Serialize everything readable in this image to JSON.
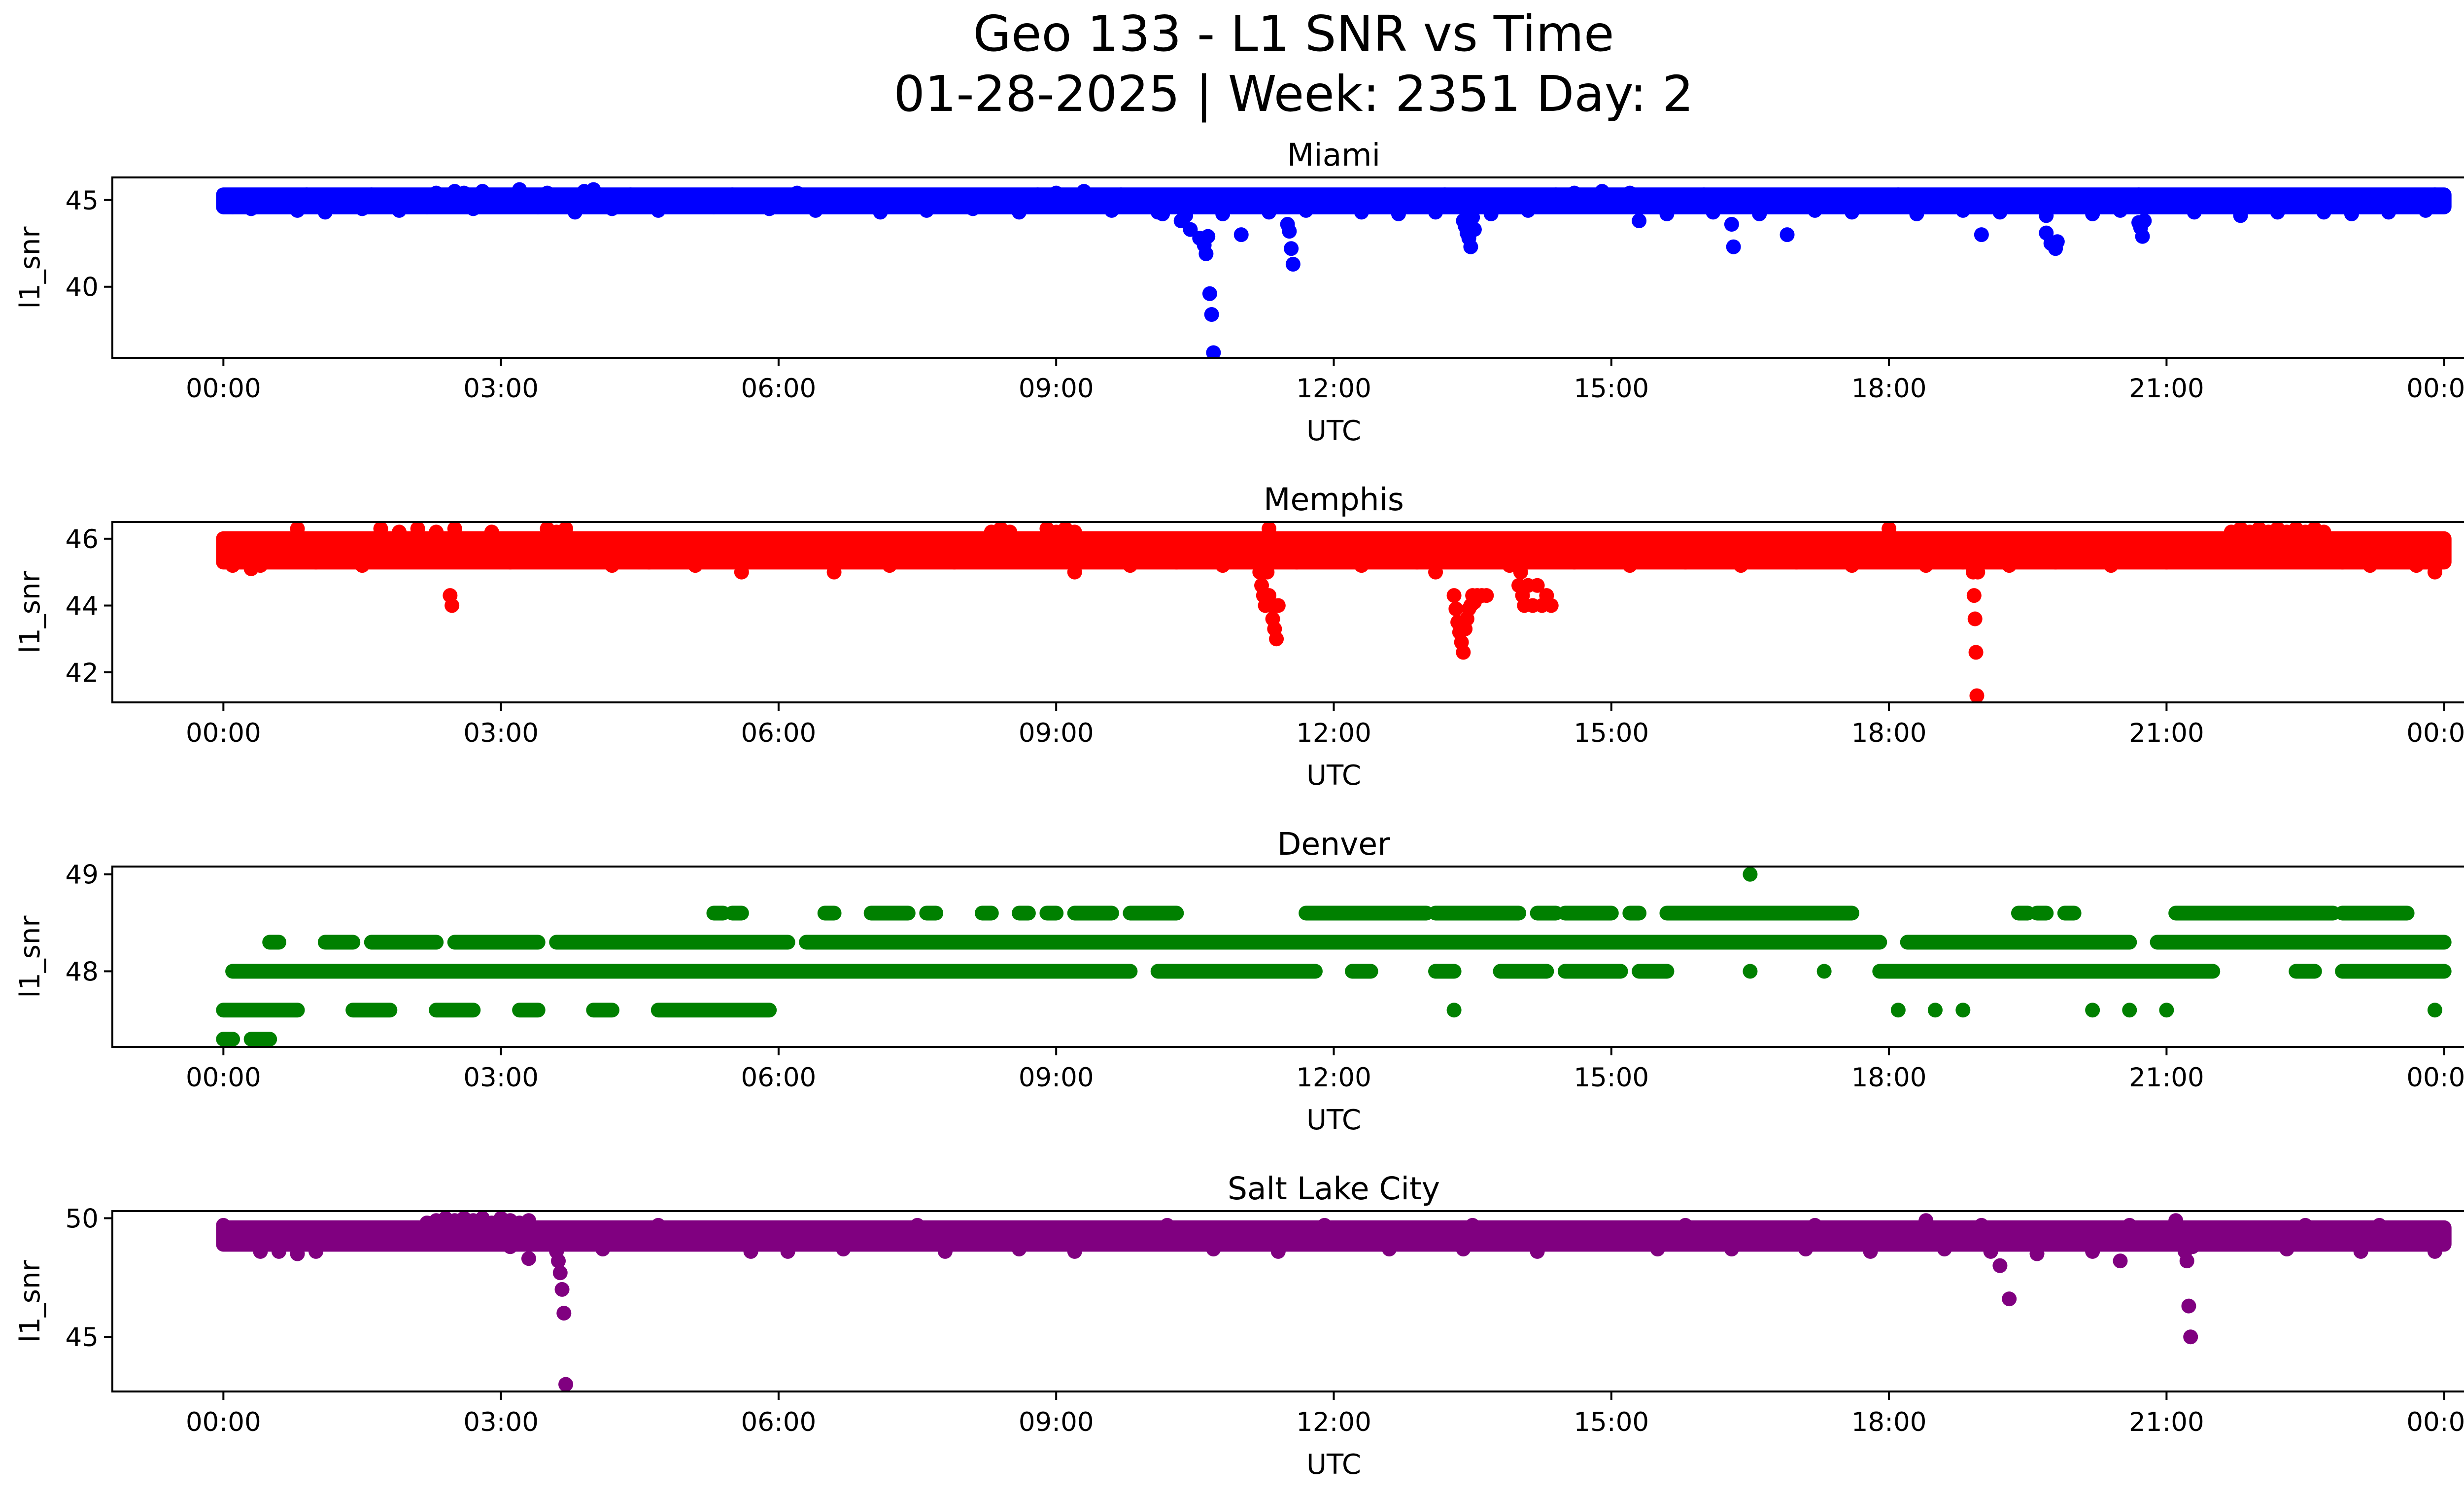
{
  "figure": {
    "title_line1": "Geo 133 - L1 SNR vs Time",
    "title_line2": "01-28-2025 | Week: 2351 Day: 2"
  },
  "chart_data": [
    {
      "type": "scatter",
      "title": "Miami",
      "xlabel": "UTC",
      "ylabel": "l1_snr",
      "color": "#0000ff",
      "xlim_hours": [
        -1.2,
        25.2
      ],
      "ylim": [
        35.9,
        46.3
      ],
      "x_ticks": [
        "00:00",
        "03:00",
        "06:00",
        "09:00",
        "12:00",
        "15:00",
        "18:00",
        "21:00",
        "00:00"
      ],
      "y_ticks": [
        40,
        45
      ],
      "band": {
        "low": 44.6,
        "high": 45.3,
        "start": 0.0,
        "end": 24.0
      },
      "scatter_above": {
        "x": [
          0.3,
          0.5,
          0.9,
          1.2,
          1.6,
          2.3,
          2.5,
          2.6,
          2.8,
          3.2,
          3.5,
          3.9,
          4.0,
          4.4,
          5.1,
          5.5,
          6.2,
          7.0,
          8.3,
          8.8,
          9.0,
          9.3,
          9.7,
          11.8,
          13.2,
          14.4,
          14.6,
          14.9,
          15.2,
          16.0,
          16.4,
          17.9,
          18.1,
          19.4,
          20.7,
          21.1,
          22.4,
          23.6,
          23.9
        ],
        "y": [
          45.2,
          45.2,
          45.3,
          45.2,
          45.3,
          45.4,
          45.5,
          45.4,
          45.5,
          45.6,
          45.4,
          45.5,
          45.6,
          45.3,
          45.2,
          45.3,
          45.4,
          45.2,
          45.2,
          45.3,
          45.4,
          45.5,
          45.3,
          45.2,
          45.3,
          45.3,
          45.4,
          45.5,
          45.4,
          45.3,
          45.2,
          45.2,
          45.3,
          45.2,
          45.3,
          45.2,
          45.2,
          45.2,
          45.3
        ]
      },
      "scatter_below": {
        "x": [
          0.1,
          0.3,
          0.8,
          1.1,
          1.5,
          1.9,
          2.2,
          2.7,
          3.4,
          3.8,
          4.2,
          4.7,
          5.3,
          5.9,
          6.4,
          7.1,
          7.6,
          8.1,
          8.6,
          9.6,
          10.1,
          10.4,
          10.8,
          11.3,
          11.7,
          12.3,
          12.7,
          13.1,
          13.7,
          14.1,
          15.6,
          16.1,
          16.6,
          17.2,
          17.6,
          18.3,
          18.8,
          19.2,
          19.7,
          20.2,
          20.5,
          21.3,
          21.8,
          22.2,
          22.7,
          23.0,
          23.4,
          23.8
        ],
        "y": [
          44.6,
          44.5,
          44.4,
          44.3,
          44.5,
          44.4,
          44.6,
          44.5,
          44.6,
          44.3,
          44.5,
          44.4,
          44.6,
          44.5,
          44.4,
          44.3,
          44.4,
          44.5,
          44.3,
          44.4,
          44.3,
          44.1,
          44.2,
          44.3,
          44.4,
          44.3,
          44.2,
          44.3,
          44.2,
          44.4,
          44.2,
          44.3,
          44.2,
          44.4,
          44.3,
          44.2,
          44.4,
          44.3,
          44.1,
          44.2,
          44.4,
          44.3,
          44.1,
          44.3,
          44.3,
          44.2,
          44.3,
          44.4
        ]
      },
      "scatter_dips": {
        "x": [
          10.15,
          10.35,
          10.45,
          10.55,
          10.6,
          10.62,
          10.64,
          10.66,
          10.68,
          10.7,
          11.0,
          11.5,
          11.52,
          11.54,
          11.56,
          13.4,
          13.42,
          13.44,
          13.46,
          13.48,
          13.5,
          13.52,
          15.3,
          16.3,
          16.32,
          16.9,
          19.0,
          19.7,
          19.75,
          19.8,
          19.82,
          20.7,
          20.72,
          20.74,
          20.76
        ],
        "y": [
          44.2,
          43.8,
          43.3,
          42.8,
          42.4,
          41.9,
          42.9,
          39.6,
          38.4,
          36.2,
          43.0,
          43.6,
          43.2,
          42.2,
          41.3,
          43.8,
          43.5,
          43.1,
          42.8,
          42.3,
          44.0,
          43.3,
          43.8,
          43.6,
          42.3,
          43.0,
          43.0,
          43.1,
          42.5,
          42.2,
          42.6,
          43.7,
          43.4,
          42.9,
          43.8
        ]
      }
    },
    {
      "type": "scatter",
      "title": "Memphis",
      "xlabel": "UTC",
      "ylabel": "l1_snr",
      "color": "#ff0000",
      "xlim_hours": [
        -1.2,
        25.2
      ],
      "ylim": [
        41.1,
        46.5
      ],
      "x_ticks": [
        "00:00",
        "03:00",
        "06:00",
        "09:00",
        "12:00",
        "15:00",
        "18:00",
        "21:00",
        "00:00"
      ],
      "y_ticks": [
        42,
        44,
        46
      ],
      "band": {
        "low": 45.3,
        "high": 46.0,
        "start": 0.0,
        "end": 24.0
      },
      "scatter_above": {
        "x": [
          0.8,
          1.7,
          1.9,
          2.1,
          2.3,
          2.5,
          2.9,
          3.5,
          3.6,
          3.7,
          8.3,
          8.4,
          8.5,
          8.9,
          9.0,
          9.1,
          9.2,
          11.3,
          18.0,
          21.7,
          21.8,
          21.9,
          22.0,
          22.1,
          22.2,
          22.3,
          22.4,
          22.5,
          22.6,
          22.7
        ],
        "y": [
          46.3,
          46.3,
          46.2,
          46.3,
          46.2,
          46.3,
          46.2,
          46.3,
          46.2,
          46.3,
          46.2,
          46.3,
          46.2,
          46.3,
          46.2,
          46.3,
          46.2,
          46.3,
          46.3,
          46.2,
          46.3,
          46.2,
          46.3,
          46.2,
          46.3,
          46.2,
          46.3,
          46.2,
          46.3,
          46.2
        ]
      },
      "scatter_below": {
        "x": [
          0.1,
          0.3,
          0.4,
          1.0,
          1.5,
          3.1,
          4.2,
          4.6,
          5.1,
          5.6,
          6.6,
          7.2,
          7.9,
          9.2,
          9.8,
          10.3,
          10.8,
          11.6,
          12.3,
          12.9,
          13.1,
          13.9,
          14.6,
          15.2,
          15.8,
          16.4,
          17.0,
          17.6,
          18.4,
          18.8,
          19.3,
          19.8,
          20.4,
          21.0,
          22.9,
          23.2,
          23.7,
          23.9
        ],
        "y": [
          45.2,
          45.1,
          45.2,
          45.3,
          45.2,
          45.3,
          45.2,
          45.3,
          45.2,
          45.0,
          45.0,
          45.2,
          45.3,
          45.0,
          45.2,
          45.3,
          45.2,
          45.3,
          45.2,
          45.3,
          45.0,
          45.2,
          45.3,
          45.2,
          45.3,
          45.2,
          45.3,
          45.2,
          45.2,
          45.3,
          45.2,
          45.3,
          45.2,
          45.3,
          45.3,
          45.2,
          45.2,
          45.0
        ]
      },
      "scatter_dips": {
        "x": [
          2.45,
          2.47,
          11.2,
          11.22,
          11.24,
          11.26,
          11.28,
          11.3,
          11.32,
          11.34,
          11.36,
          11.38,
          11.4,
          13.3,
          13.32,
          13.34,
          13.36,
          13.38,
          13.4,
          13.42,
          13.44,
          13.46,
          13.48,
          13.5,
          13.52,
          13.55,
          13.6,
          13.65,
          14.0,
          14.02,
          14.04,
          14.06,
          14.1,
          14.15,
          14.2,
          14.25,
          14.3,
          14.35,
          18.9,
          18.91,
          18.92,
          18.93,
          18.94,
          18.95,
          18.96
        ],
        "y": [
          44.3,
          44.0,
          45.0,
          44.6,
          44.3,
          44.0,
          45.0,
          44.3,
          44.0,
          43.6,
          43.3,
          43.0,
          44.0,
          44.3,
          43.9,
          43.5,
          43.2,
          42.9,
          42.6,
          43.3,
          43.6,
          43.9,
          44.0,
          44.3,
          44.1,
          44.3,
          44.3,
          44.3,
          44.6,
          45.0,
          44.3,
          44.0,
          44.6,
          44.0,
          44.6,
          44.0,
          44.3,
          44.0,
          45.3,
          45.0,
          44.3,
          43.6,
          42.6,
          41.3,
          45.0
        ]
      }
    },
    {
      "type": "scatter",
      "title": "Denver",
      "xlabel": "UTC",
      "ylabel": "l1_snr",
      "color": "#008000",
      "xlim_hours": [
        -1.2,
        25.2
      ],
      "ylim": [
        47.22,
        49.08
      ],
      "x_ticks": [
        "00:00",
        "03:00",
        "06:00",
        "09:00",
        "12:00",
        "15:00",
        "18:00",
        "21:00",
        "00:00"
      ],
      "y_ticks": [
        48,
        49
      ],
      "levels": [
        {
          "y": 47.3,
          "segments": [
            [
              0.0,
              0.1
            ],
            [
              0.3,
              0.5
            ]
          ]
        },
        {
          "y": 47.6,
          "segments": [
            [
              0.0,
              0.8
            ],
            [
              1.4,
              1.8
            ],
            [
              2.3,
              2.7
            ],
            [
              3.2,
              3.4
            ],
            [
              4.0,
              4.2
            ],
            [
              4.7,
              5.9
            ]
          ]
        },
        {
          "y": 48.0,
          "segments": [
            [
              0.1,
              9.8
            ],
            [
              10.1,
              11.8
            ],
            [
              12.2,
              12.4
            ],
            [
              13.1,
              13.3
            ],
            [
              13.8,
              14.3
            ],
            [
              14.5,
              15.1
            ],
            [
              15.3,
              15.6
            ],
            [
              17.9,
              21.5
            ],
            [
              22.4,
              22.6
            ],
            [
              22.9,
              24.0
            ]
          ]
        },
        {
          "y": 48.3,
          "segments": [
            [
              0.5,
              0.6
            ],
            [
              1.1,
              1.4
            ],
            [
              1.6,
              2.3
            ],
            [
              2.5,
              3.4
            ],
            [
              3.6,
              6.1
            ],
            [
              6.3,
              17.9
            ],
            [
              18.2,
              20.6
            ],
            [
              20.9,
              24.0
            ]
          ]
        },
        {
          "y": 48.6,
          "segments": [
            [
              5.3,
              5.4
            ],
            [
              5.5,
              5.6
            ],
            [
              6.5,
              6.6
            ],
            [
              7.0,
              7.4
            ],
            [
              7.6,
              7.7
            ],
            [
              8.2,
              8.3
            ],
            [
              8.6,
              8.7
            ],
            [
              8.9,
              9.0
            ],
            [
              9.2,
              9.6
            ],
            [
              9.8,
              10.3
            ],
            [
              11.7,
              13.0
            ],
            [
              13.1,
              14.0
            ],
            [
              14.2,
              14.4
            ],
            [
              14.5,
              15.0
            ],
            [
              15.2,
              15.3
            ],
            [
              15.6,
              17.6
            ],
            [
              19.4,
              19.5
            ],
            [
              19.6,
              19.7
            ],
            [
              19.9,
              20.0
            ],
            [
              21.1,
              22.8
            ],
            [
              22.9,
              23.6
            ]
          ]
        }
      ],
      "scatter_extra": {
        "x": [
          16.5,
          13.3,
          18.1,
          18.5,
          18.8,
          20.2,
          20.6,
          21.0,
          23.9,
          16.5,
          17.3
        ],
        "y": [
          49.0,
          47.6,
          47.6,
          47.6,
          47.6,
          47.6,
          47.6,
          47.6,
          47.6,
          48.0,
          48.0
        ]
      }
    },
    {
      "type": "scatter",
      "title": "Salt Lake City",
      "xlabel": "UTC",
      "ylabel": "l1_snr",
      "color": "#800080",
      "xlim_hours": [
        -1.2,
        25.2
      ],
      "ylim": [
        42.7,
        50.3
      ],
      "x_ticks": [
        "00:00",
        "03:00",
        "06:00",
        "09:00",
        "12:00",
        "15:00",
        "18:00",
        "21:00",
        "00:00"
      ],
      "y_ticks": [
        45,
        50
      ],
      "band": {
        "low": 48.9,
        "high": 49.6,
        "start": 0.0,
        "end": 24.0
      },
      "scatter_above": {
        "x": [
          2.2,
          2.3,
          2.4,
          2.5,
          2.6,
          2.7,
          2.8,
          2.9,
          3.0,
          3.1,
          3.2,
          3.3,
          18.4,
          21.1,
          0.0,
          4.7,
          7.5,
          10.2,
          11.9,
          13.5,
          15.8,
          17.2,
          19.0,
          20.6,
          22.5,
          23.3
        ],
        "y": [
          49.8,
          49.9,
          50.0,
          49.9,
          50.0,
          49.9,
          50.0,
          49.8,
          50.0,
          49.9,
          49.8,
          49.9,
          49.9,
          49.9,
          49.7,
          49.7,
          49.7,
          49.7,
          49.7,
          49.7,
          49.7,
          49.7,
          49.7,
          49.7,
          49.7,
          49.7
        ]
      },
      "scatter_below": {
        "x": [
          0.4,
          0.6,
          0.8,
          1.0,
          4.1,
          5.7,
          6.1,
          6.7,
          7.8,
          8.6,
          9.2,
          10.7,
          11.4,
          12.6,
          13.4,
          14.2,
          15.5,
          16.3,
          17.1,
          17.8,
          18.6,
          19.6,
          20.2,
          22.3,
          23.1,
          23.9
        ],
        "y": [
          48.6,
          48.6,
          48.5,
          48.6,
          48.7,
          48.6,
          48.6,
          48.7,
          48.6,
          48.7,
          48.6,
          48.7,
          48.6,
          48.7,
          48.7,
          48.6,
          48.7,
          48.7,
          48.7,
          48.6,
          48.7,
          48.5,
          48.6,
          48.7,
          48.6,
          48.6
        ]
      },
      "scatter_dips": {
        "x": [
          3.1,
          3.3,
          3.6,
          3.62,
          3.64,
          3.66,
          3.68,
          3.7,
          19.1,
          19.2,
          19.3,
          20.5,
          21.2,
          21.22,
          21.24,
          21.26,
          21.28
        ],
        "y": [
          48.8,
          48.3,
          48.6,
          48.2,
          47.7,
          47.0,
          46.0,
          43.0,
          48.6,
          48.0,
          46.6,
          48.2,
          48.6,
          48.2,
          46.3,
          45.0,
          48.8
        ]
      }
    }
  ]
}
